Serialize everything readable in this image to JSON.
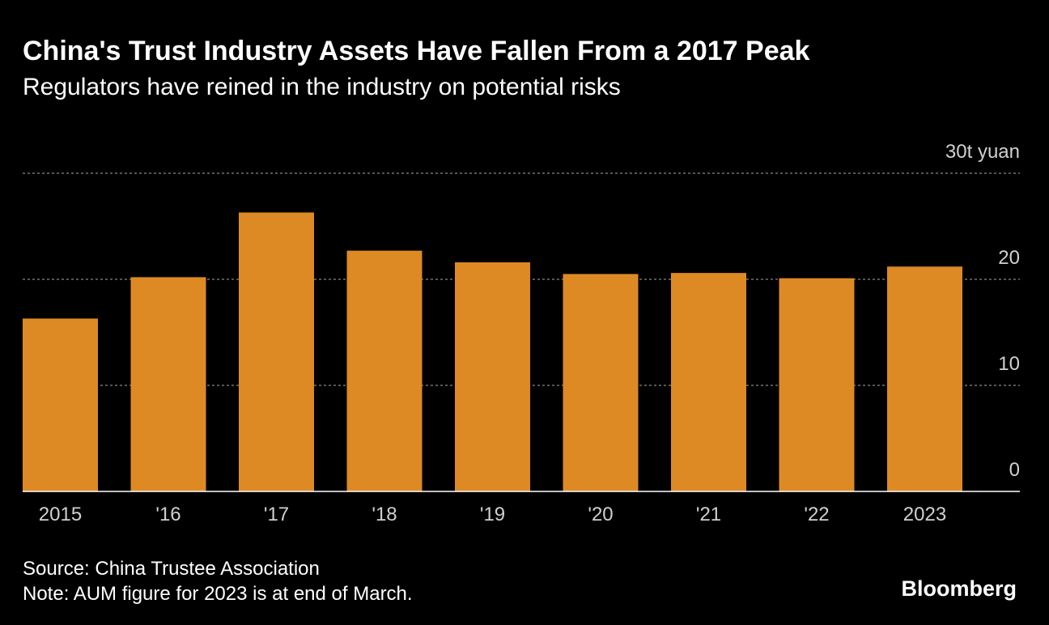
{
  "chart_data": {
    "type": "bar",
    "title": "China's Trust Industry Assets Have Fallen From a 2017 Peak",
    "subtitle": "Regulators have reined in the industry on potential risks",
    "categories": [
      "2015",
      "'16",
      "'17",
      "'18",
      "'19",
      "'20",
      "'21",
      "'22",
      "2023"
    ],
    "values": [
      16.3,
      20.2,
      26.3,
      22.7,
      21.6,
      20.5,
      20.6,
      20.1,
      21.2
    ],
    "color": "#dd8a25",
    "ylim": [
      0,
      30
    ],
    "yticks": [
      0,
      10,
      20,
      {
        "value": 30,
        "label": "30t yuan"
      }
    ],
    "grid": true,
    "source": "Source: China Trustee Association",
    "note": "Note: AUM figure for 2023 is at end of March.",
    "brand": "Bloomberg"
  }
}
